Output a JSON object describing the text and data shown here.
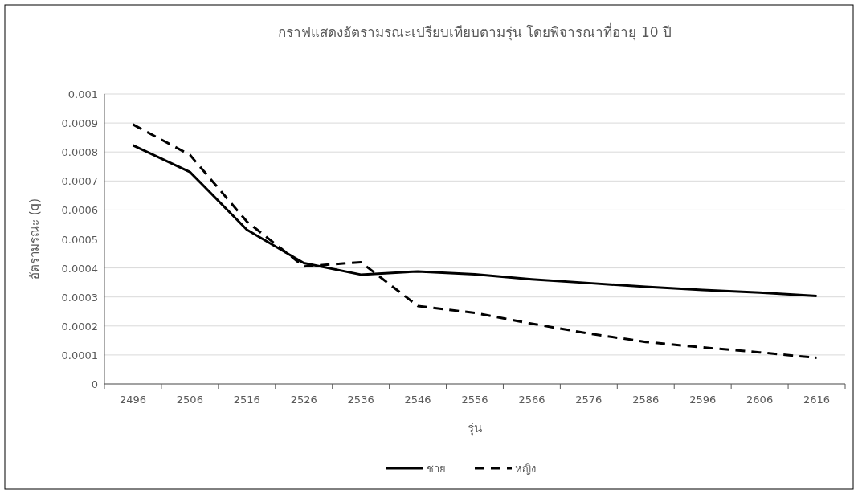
{
  "chart_data": {
    "type": "line",
    "title": "กราฟแสดงอัตรามรณะเปรียบเทียบตามรุ่น โดยพิจารณาที่อายุ 10 ปี",
    "xlabel": "รุ่น",
    "ylabel": "อัตรามรณะ (q)",
    "categories": [
      "2496",
      "2506",
      "2516",
      "2526",
      "2536",
      "2546",
      "2556",
      "2566",
      "2576",
      "2586",
      "2596",
      "2606",
      "2616"
    ],
    "series": [
      {
        "name": "ชาย",
        "color": "#000000",
        "line_style": "solid",
        "values": [
          0.000823,
          0.000731,
          0.000532,
          0.000417,
          0.000377,
          0.000388,
          0.000378,
          0.000361,
          0.000348,
          0.000335,
          0.000324,
          0.000315,
          0.000303
        ]
      },
      {
        "name": "หญิง",
        "color": "#000000",
        "line_style": "dashed",
        "values": [
          0.000895,
          0.00079,
          0.00056,
          0.000405,
          0.00042,
          0.000269,
          0.000245,
          0.000208,
          0.000174,
          0.000145,
          0.000126,
          0.000109,
          9e-05
        ]
      }
    ],
    "ylim": [
      0,
      0.001
    ],
    "yticks": [
      0,
      0.0001,
      0.0002,
      0.0003,
      0.0004,
      0.0005,
      0.0006,
      0.0007,
      0.0008,
      0.0009,
      0.001
    ],
    "grid": "y",
    "legend": "bottom"
  }
}
